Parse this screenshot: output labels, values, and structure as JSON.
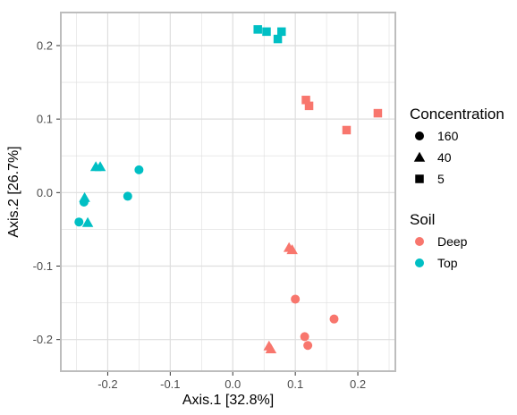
{
  "chart_data": {
    "type": "scatter",
    "xlabel": "Axis.1   [32.8%]",
    "ylabel": "Axis.2   [26.7%]",
    "xlim": [
      -0.275,
      0.26
    ],
    "ylim": [
      -0.243,
      0.245
    ],
    "x_ticks": [
      {
        "value": -0.2,
        "label": "-0.2"
      },
      {
        "value": -0.1,
        "label": "-0.1"
      },
      {
        "value": 0.0,
        "label": "0.0"
      },
      {
        "value": 0.1,
        "label": "0.1"
      },
      {
        "value": 0.2,
        "label": "0.2"
      }
    ],
    "y_ticks": [
      {
        "value": 0.2,
        "label": "0.2"
      },
      {
        "value": 0.1,
        "label": "0.1"
      },
      {
        "value": 0.0,
        "label": "0.0"
      },
      {
        "value": -0.1,
        "label": "-0.1"
      },
      {
        "value": -0.2,
        "label": "-0.2"
      }
    ],
    "grid": true,
    "panel_background": "#ffffff",
    "grid_color": "#dedede",
    "border_color": "#bdbdbd",
    "legend_placement": "right",
    "legends": [
      {
        "title": "Concentration",
        "aesthetic": "shape",
        "entries": [
          {
            "label": "160",
            "shape": "circle"
          },
          {
            "label": "40",
            "shape": "triangle"
          },
          {
            "label": "5",
            "shape": "square"
          }
        ]
      },
      {
        "title": "Soil",
        "aesthetic": "color",
        "entries": [
          {
            "label": "Deep",
            "color": "#F8766D"
          },
          {
            "label": "Top",
            "color": "#00BFC4"
          }
        ]
      }
    ],
    "points": [
      {
        "x": 0.04,
        "y": 0.222,
        "concentration": "5",
        "soil": "Top"
      },
      {
        "x": 0.054,
        "y": 0.219,
        "concentration": "5",
        "soil": "Top"
      },
      {
        "x": 0.072,
        "y": 0.209,
        "concentration": "5",
        "soil": "Top"
      },
      {
        "x": 0.078,
        "y": 0.219,
        "concentration": "5",
        "soil": "Top"
      },
      {
        "x": 0.117,
        "y": 0.126,
        "concentration": "5",
        "soil": "Deep"
      },
      {
        "x": 0.122,
        "y": 0.118,
        "concentration": "5",
        "soil": "Deep"
      },
      {
        "x": 0.182,
        "y": 0.085,
        "concentration": "5",
        "soil": "Deep"
      },
      {
        "x": 0.232,
        "y": 0.108,
        "concentration": "5",
        "soil": "Deep"
      },
      {
        "x": -0.219,
        "y": 0.035,
        "concentration": "40",
        "soil": "Top"
      },
      {
        "x": -0.212,
        "y": 0.035,
        "concentration": "40",
        "soil": "Top"
      },
      {
        "x": -0.237,
        "y": -0.007,
        "concentration": "40",
        "soil": "Top"
      },
      {
        "x": -0.232,
        "y": -0.041,
        "concentration": "40",
        "soil": "Top"
      },
      {
        "x": -0.15,
        "y": 0.031,
        "concentration": "160",
        "soil": "Top"
      },
      {
        "x": -0.168,
        "y": -0.005,
        "concentration": "160",
        "soil": "Top"
      },
      {
        "x": -0.238,
        "y": -0.013,
        "concentration": "160",
        "soil": "Top"
      },
      {
        "x": -0.246,
        "y": -0.04,
        "concentration": "160",
        "soil": "Top"
      },
      {
        "x": 0.09,
        "y": -0.075,
        "concentration": "40",
        "soil": "Deep"
      },
      {
        "x": 0.095,
        "y": -0.078,
        "concentration": "40",
        "soil": "Deep"
      },
      {
        "x": 0.058,
        "y": -0.209,
        "concentration": "40",
        "soil": "Deep"
      },
      {
        "x": 0.061,
        "y": -0.213,
        "concentration": "40",
        "soil": "Deep"
      },
      {
        "x": 0.1,
        "y": -0.145,
        "concentration": "160",
        "soil": "Deep"
      },
      {
        "x": 0.162,
        "y": -0.172,
        "concentration": "160",
        "soil": "Deep"
      },
      {
        "x": 0.115,
        "y": -0.196,
        "concentration": "160",
        "soil": "Deep"
      },
      {
        "x": 0.12,
        "y": -0.208,
        "concentration": "160",
        "soil": "Deep"
      }
    ]
  }
}
